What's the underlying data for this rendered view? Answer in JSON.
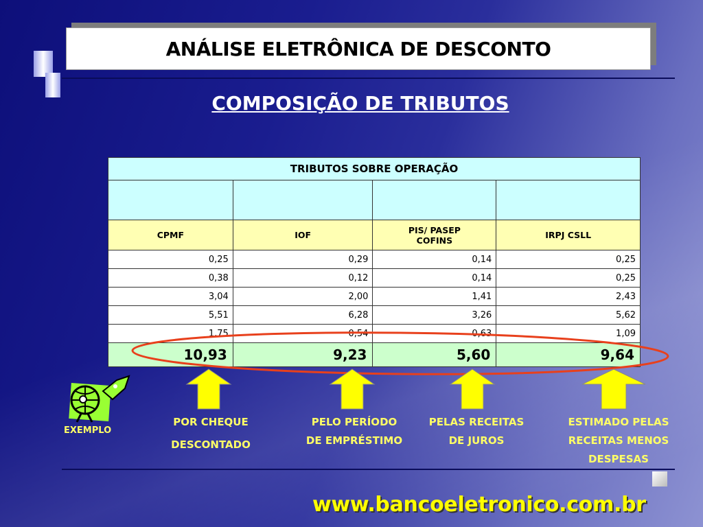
{
  "header": {
    "title": "ANÁLISE ELETRÔNICA DE DESCONTO",
    "subtitle": "COMPOSIÇÃO DE TRIBUTOS"
  },
  "table": {
    "title": "TRIBUTOS SOBRE OPERAÇÃO",
    "columns": [
      "CPMF",
      "IOF",
      "PIS/ PASEP COFINS",
      "IRPJ CSLL"
    ],
    "rows": [
      [
        "0,25",
        "0,29",
        "0,14",
        "0,25"
      ],
      [
        "0,38",
        "0,12",
        "0,14",
        "0,25"
      ],
      [
        "3,04",
        "2,00",
        "1,41",
        "2,43"
      ],
      [
        "5,51",
        "6,28",
        "3,26",
        "5,62"
      ],
      [
        "1,75",
        "0,54",
        "0,63",
        "1,09"
      ]
    ],
    "totals": [
      "10,93",
      "9,23",
      "5,60",
      "9,64"
    ]
  },
  "labels": [
    {
      "line1": "POR CHEQUE",
      "line2": "DESCONTADO"
    },
    {
      "line1": "PELO PERÍODO",
      "line2": "DE EMPRÉSTIMO"
    },
    {
      "line1": "PELAS RECEITAS",
      "line2": "DE JUROS"
    },
    {
      "line1": "ESTIMADO PELAS",
      "line2": "RECEITAS MENOS",
      "line3": "DESPESAS"
    }
  ],
  "example_label": "EXEMPLO",
  "footer_url": "www.bancoeletronico.com.br",
  "colors": {
    "background": "#1a1d8f",
    "highlight_ellipse": "#e8401c",
    "arrow": "#ffff00",
    "label": "#ffff66"
  }
}
